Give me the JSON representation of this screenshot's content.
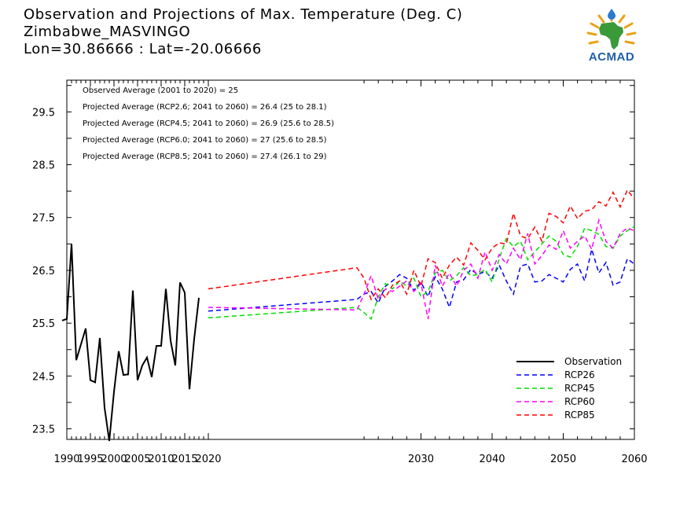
{
  "header": {
    "title": "Observation and Projections of Max. Temperature (Deg. C)",
    "location": "Zimbabwe_MASVINGO",
    "coords": "Lon=30.86666 : Lat=-20.06666"
  },
  "logo": {
    "text": "ACMAD"
  },
  "annotations": [
    "Observed Average (2001 to 2020) = 25",
    "Projected Average (RCP2.6; 2041 to 2060) = 26.4 (25 to 28.1)",
    "Projected Average (RCP4.5; 2041 to 2060) = 26.9 (25.6 to 28.5)",
    "Projected Average (RCP6.0; 2041 to 2060) = 27 (25.6 to 28.5)",
    "Projected Average (RCP8.5; 2041 to 2060) = 27.4 (26.1 to 29)"
  ],
  "chart_data": {
    "type": "line",
    "title": "Observation and Projections of Max. Temperature (Deg. C)",
    "xlabel": "",
    "ylabel": "",
    "xlim": [
      1990,
      2060
    ],
    "ylim": [
      23.3,
      30.1
    ],
    "x_ticks": [
      1990,
      1995,
      2000,
      2005,
      2010,
      2015,
      2020,
      2030,
      2040,
      2050,
      2060
    ],
    "x_tick_labels": [
      "1990",
      "1995",
      "2000",
      "2005",
      "2010",
      "2015",
      "2020",
      "2030",
      "2040",
      "2050",
      "2060"
    ],
    "y_ticks": [
      23.5,
      24.5,
      25.5,
      26.5,
      27.5,
      28.5,
      29.5
    ],
    "y_tick_labels": [
      "23.5",
      "24.5",
      "25.5",
      "26.5",
      "27.5",
      "28.5",
      "29.5"
    ],
    "legend_position": "bottom-right",
    "series": [
      {
        "name": "Observation",
        "color": "#000000",
        "dash": "solid",
        "x": [
          1989,
          1990,
          1991,
          1992,
          1993,
          1994,
          1995,
          1996,
          1997,
          1998,
          1999,
          2000,
          2001,
          2002,
          2003,
          2004,
          2005,
          2006,
          2007,
          2008,
          2009,
          2010,
          2011,
          2012,
          2013,
          2014,
          2015,
          2016,
          2017,
          2018,
          2019
        ],
        "values": [
          25.55,
          25.58,
          27.0,
          24.8,
          25.1,
          25.4,
          24.42,
          24.38,
          25.22,
          23.9,
          23.27,
          24.2,
          24.97,
          24.52,
          24.53,
          26.12,
          24.42,
          24.7,
          24.85,
          24.48,
          25.07,
          25.07,
          26.15,
          25.17,
          24.7,
          26.27,
          26.08,
          24.25,
          25.2,
          25.98,
          null
        ]
      },
      {
        "name": "RCP26",
        "color": "#0000ff",
        "dash": "dashed",
        "x": [
          2020,
          2021,
          2022,
          2023,
          2024,
          2025,
          2026,
          2027,
          2028,
          2029,
          2030,
          2031,
          2032,
          2033,
          2034,
          2035,
          2036,
          2037,
          2038,
          2039,
          2040,
          2041,
          2042,
          2043,
          2044,
          2045,
          2046,
          2047,
          2048,
          2049,
          2050,
          2051,
          2052,
          2053,
          2054,
          2055,
          2056,
          2057,
          2058,
          2059,
          2060
        ],
        "values": [
          25.73,
          25.95,
          26.05,
          26.1,
          25.88,
          26.2,
          26.3,
          26.42,
          26.35,
          26.12,
          26.28,
          26.0,
          26.38,
          26.15,
          25.8,
          26.28,
          26.32,
          26.52,
          26.42,
          26.48,
          26.35,
          26.6,
          26.3,
          26.05,
          26.58,
          26.62,
          26.28,
          26.3,
          26.42,
          26.35,
          26.28,
          26.52,
          26.62,
          26.3,
          26.9,
          26.45,
          26.65,
          26.22,
          26.28,
          26.72,
          26.62
        ]
      },
      {
        "name": "RCP45",
        "color": "#00dd00",
        "dash": "dashed",
        "x": [
          2020,
          2021,
          2022,
          2023,
          2024,
          2025,
          2026,
          2027,
          2028,
          2029,
          2030,
          2031,
          2032,
          2033,
          2034,
          2035,
          2036,
          2037,
          2038,
          2039,
          2040,
          2041,
          2042,
          2043,
          2044,
          2045,
          2046,
          2047,
          2048,
          2049,
          2050,
          2051,
          2052,
          2053,
          2054,
          2055,
          2056,
          2057,
          2058,
          2059,
          2060
        ],
        "values": [
          25.6,
          25.8,
          25.7,
          25.58,
          26.0,
          26.25,
          26.15,
          26.3,
          26.2,
          26.35,
          26.0,
          26.1,
          26.45,
          26.5,
          26.3,
          26.4,
          26.55,
          26.4,
          26.42,
          26.52,
          26.28,
          26.72,
          27.1,
          26.95,
          27.05,
          26.7,
          26.85,
          27.0,
          27.15,
          27.05,
          26.8,
          26.75,
          26.95,
          27.3,
          27.25,
          27.18,
          26.95,
          26.92,
          27.15,
          27.25,
          27.33
        ]
      },
      {
        "name": "RCP60",
        "color": "#ff00ff",
        "dash": "dashed",
        "x": [
          2020,
          2021,
          2022,
          2023,
          2024,
          2025,
          2026,
          2027,
          2028,
          2029,
          2030,
          2031,
          2032,
          2033,
          2034,
          2035,
          2036,
          2037,
          2038,
          2039,
          2040,
          2041,
          2042,
          2043,
          2044,
          2045,
          2046,
          2047,
          2048,
          2049,
          2050,
          2051,
          2052,
          2053,
          2054,
          2055,
          2056,
          2057,
          2058,
          2059,
          2060
        ],
        "values": [
          25.8,
          25.75,
          26.05,
          26.4,
          25.95,
          26.15,
          26.1,
          26.2,
          26.3,
          26.1,
          26.25,
          25.58,
          26.6,
          26.2,
          26.45,
          26.2,
          26.5,
          26.62,
          26.35,
          26.85,
          26.5,
          26.8,
          26.62,
          26.92,
          26.7,
          27.2,
          26.62,
          26.78,
          26.98,
          26.9,
          27.25,
          26.92,
          27.05,
          27.15,
          26.9,
          27.45,
          27.05,
          26.92,
          27.2,
          27.3,
          27.25
        ]
      },
      {
        "name": "RCP85",
        "color": "#ff0000",
        "dash": "dashed",
        "x": [
          2020,
          2021,
          2022,
          2023,
          2024,
          2025,
          2026,
          2027,
          2028,
          2029,
          2030,
          2031,
          2032,
          2033,
          2034,
          2035,
          2036,
          2037,
          2038,
          2039,
          2040,
          2041,
          2042,
          2043,
          2044,
          2045,
          2046,
          2047,
          2048,
          2049,
          2050,
          2051,
          2052,
          2053,
          2054,
          2055,
          2056,
          2057,
          2058,
          2059,
          2060
        ],
        "values": [
          26.15,
          26.55,
          26.35,
          25.95,
          26.15,
          25.98,
          26.22,
          26.3,
          26.05,
          26.5,
          26.2,
          26.72,
          26.65,
          26.35,
          26.6,
          26.75,
          26.6,
          27.02,
          26.88,
          26.7,
          26.92,
          27.02,
          27.0,
          27.58,
          27.15,
          27.1,
          27.32,
          27.05,
          27.58,
          27.52,
          27.4,
          27.72,
          27.48,
          27.62,
          27.65,
          27.8,
          27.72,
          27.98,
          27.7,
          28.02,
          27.85
        ]
      }
    ]
  }
}
